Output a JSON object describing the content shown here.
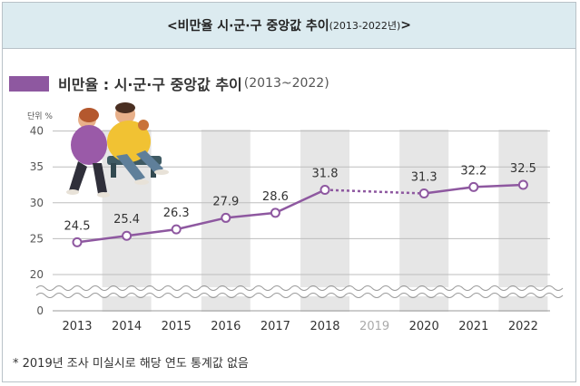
{
  "header": {
    "title_main": "<비만율 시·군·구 중앙값 추이",
    "title_years": "(2013-2022년)",
    "title_end": ">"
  },
  "legend": {
    "label": "비만율 : 시·군·구 중앙값 추이",
    "years": "(2013~2022)",
    "color": "#8e58a0"
  },
  "footnote": "* 2019년 조사 미실시로 해당 연도 통계값 없음",
  "chart_data": {
    "type": "line",
    "unit_label": "단위 %",
    "x": [
      "2013",
      "2014",
      "2015",
      "2016",
      "2017",
      "2018",
      "2019",
      "2020",
      "2021",
      "2022"
    ],
    "values": [
      24.5,
      25.4,
      26.3,
      27.9,
      28.6,
      31.8,
      null,
      31.3,
      32.2,
      32.5
    ],
    "value_labels": [
      "24.5",
      "25.4",
      "26.3",
      "27.9",
      "28.6",
      "31.8",
      "",
      "31.3",
      "32.2",
      "32.5"
    ],
    "missing_note": "2019 not surveyed (dotted connection)",
    "yticks": [
      0,
      20,
      25,
      30,
      35,
      40
    ],
    "ylim": [
      0,
      40
    ],
    "axis_break": "between 0 and 20",
    "line_color": "#8e58a0",
    "grid": true,
    "illustration": "couple-on-bench-illustration"
  }
}
